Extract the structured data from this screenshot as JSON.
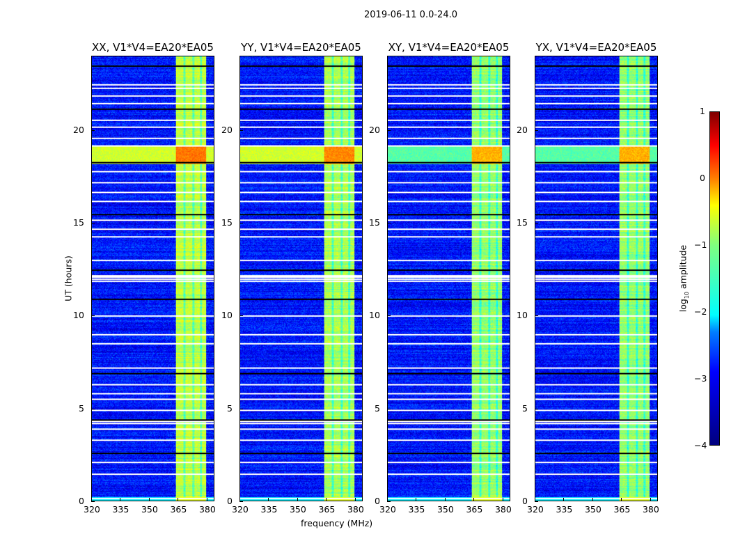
{
  "chart_data": {
    "type": "heatmap",
    "title": "2019-06-11 0.0-24.0",
    "xlabel": "frequency (MHz)",
    "ylabel": "UT (hours)",
    "xlim": [
      320,
      384
    ],
    "ylim": [
      0,
      24
    ],
    "xticks": [
      "320",
      "335",
      "350",
      "365",
      "380"
    ],
    "yticks": [
      "0",
      "5",
      "10",
      "15",
      "20"
    ],
    "panels": [
      {
        "title": "XX, V1*V4=EA20*EA05",
        "band_level": -1.2,
        "hot_level": -0.2
      },
      {
        "title": "YY, V1*V4=EA20*EA05",
        "band_level": -1.3,
        "hot_level": -0.3
      },
      {
        "title": "XY, V1*V4=EA20*EA05",
        "band_level": -1.4,
        "hot_level": -0.5
      },
      {
        "title": "YX, V1*V4=EA20*EA05",
        "band_level": -1.4,
        "hot_level": -0.5
      }
    ],
    "background_level": -3.3,
    "rfi_band_mhz": [
      364,
      380
    ],
    "hot_hours": [
      18.2,
      19.2
    ],
    "flagged_hours": [
      0.15,
      1.45,
      2.1,
      2.6,
      3.3,
      3.9,
      4.2,
      4.3,
      4.4,
      4.9,
      5.5,
      5.8,
      6.3,
      6.9,
      7.2,
      8.5,
      9.0,
      10.0,
      10.9,
      11.9,
      12.0,
      12.1,
      12.2,
      12.5,
      13.0,
      14.3,
      14.7,
      15.2,
      15.5,
      16.2,
      16.7,
      17.2,
      17.8,
      18.3,
      19.2,
      19.6,
      20.2,
      20.6,
      21.2,
      21.5,
      21.9,
      22.3,
      22.5,
      23.5
    ],
    "colorbar": {
      "label": "log10 amplitude",
      "label_main": "log",
      "label_sub": "10",
      "label_tail": " amplitude",
      "range": [
        -4,
        1
      ],
      "ticks": [
        "1",
        "0",
        "−1",
        "−2",
        "−3",
        "−4"
      ],
      "colormap": "jet"
    }
  }
}
